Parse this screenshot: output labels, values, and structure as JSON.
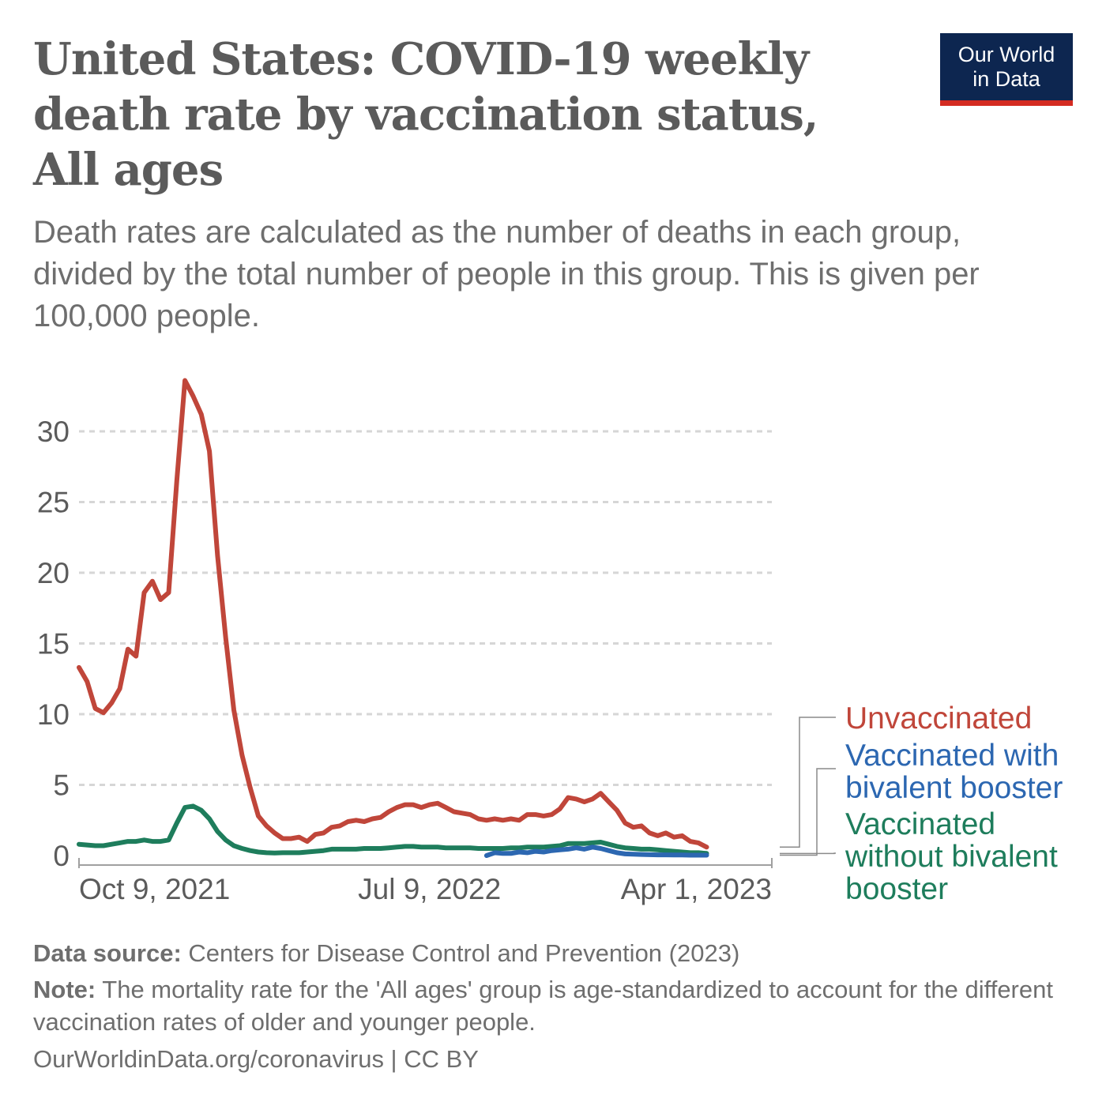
{
  "header": {
    "title": "United States: COVID-19 weekly death rate by vaccination status, All ages",
    "subtitle": "Death rates are calculated as the number of deaths in each group, divided by the total number of people in this group. This is given per 100,000 people."
  },
  "logo": {
    "line1": "Our World",
    "line2": "in Data"
  },
  "footer": {
    "source_label": "Data source:",
    "source_text": " Centers for Disease Control and Prevention (2023)",
    "note_label": "Note:",
    "note_text": " The mortality rate for the 'All ages' group is age-standardized to account for the different vaccination rates of older and younger people.",
    "url": "OurWorldinData.org/coronavirus | CC BY"
  },
  "colors": {
    "unvaccinated": "#c0463a",
    "bivalent": "#2c67b1",
    "without_bivalent": "#1e7d5c",
    "grid": "#d6d6d6",
    "axis": "#a0a0a0"
  },
  "chart_data": {
    "type": "line",
    "title": "United States: COVID-19 weekly death rate by vaccination status, All ages",
    "xlabel": "",
    "ylabel": "",
    "ylim": [
      0,
      30
    ],
    "y_ticks": [
      0,
      5,
      10,
      15,
      20,
      25,
      30
    ],
    "grid": true,
    "x_tick_labels": [
      {
        "label": "Oct 9, 2021",
        "week": 4
      },
      {
        "label": "Jul 9, 2022",
        "week": 43
      },
      {
        "label": "Apr 1, 2023",
        "week": 81
      }
    ],
    "x_range_weeks": [
      0,
      85
    ],
    "series": [
      {
        "name": "Unvaccinated",
        "legend": "Unvaccinated",
        "color_key": "unvaccinated",
        "values": [
          13.3,
          12.3,
          10.4,
          10.1,
          10.8,
          11.8,
          14.6,
          14.1,
          18.6,
          19.4,
          18.1,
          18.6,
          26.5,
          33.6,
          32.5,
          31.2,
          28.6,
          21.2,
          15.4,
          10.3,
          7.1,
          4.8,
          2.8,
          2.1,
          1.6,
          1.2,
          1.2,
          1.3,
          1.0,
          1.5,
          1.6,
          2.0,
          2.1,
          2.4,
          2.5,
          2.4,
          2.6,
          2.7,
          3.1,
          3.4,
          3.6,
          3.6,
          3.4,
          3.6,
          3.7,
          3.4,
          3.1,
          3.0,
          2.9,
          2.6,
          2.5,
          2.6,
          2.5,
          2.6,
          2.5,
          2.9,
          2.9,
          2.8,
          2.9,
          3.3,
          4.1,
          4.0,
          3.8,
          4.0,
          4.4,
          3.8,
          3.2,
          2.3,
          2.0,
          2.1,
          1.6,
          1.4,
          1.6,
          1.3,
          1.4,
          1.0,
          0.9,
          0.6
        ]
      },
      {
        "name": "Vaccinated with bivalent booster",
        "legend": "Vaccinated with bivalent booster",
        "start_week": 50,
        "color_key": "bivalent",
        "values": [
          0.0,
          0.2,
          0.15,
          0.15,
          0.25,
          0.2,
          0.3,
          0.25,
          0.35,
          0.4,
          0.45,
          0.55,
          0.45,
          0.6,
          0.5,
          0.35,
          0.2,
          0.12,
          0.1,
          0.08,
          0.06,
          0.05,
          0.05,
          0.04,
          0.04,
          0.03,
          0.03,
          0.03
        ]
      },
      {
        "name": "Vaccinated without bivalent booster",
        "legend": "Vaccinated without bivalent booster",
        "color_key": "without_bivalent",
        "values": [
          0.8,
          0.75,
          0.7,
          0.7,
          0.8,
          0.9,
          1.0,
          1.0,
          1.1,
          1.0,
          1.0,
          1.1,
          2.3,
          3.4,
          3.5,
          3.2,
          2.6,
          1.7,
          1.1,
          0.7,
          0.5,
          0.35,
          0.25,
          0.2,
          0.18,
          0.2,
          0.2,
          0.2,
          0.25,
          0.3,
          0.35,
          0.45,
          0.45,
          0.45,
          0.45,
          0.5,
          0.5,
          0.5,
          0.55,
          0.6,
          0.65,
          0.65,
          0.6,
          0.6,
          0.6,
          0.55,
          0.55,
          0.55,
          0.55,
          0.5,
          0.5,
          0.5,
          0.5,
          0.55,
          0.55,
          0.6,
          0.6,
          0.6,
          0.65,
          0.7,
          0.85,
          0.85,
          0.85,
          0.9,
          0.95,
          0.8,
          0.65,
          0.55,
          0.5,
          0.45,
          0.45,
          0.4,
          0.35,
          0.3,
          0.25,
          0.2,
          0.2,
          0.15
        ]
      }
    ]
  }
}
